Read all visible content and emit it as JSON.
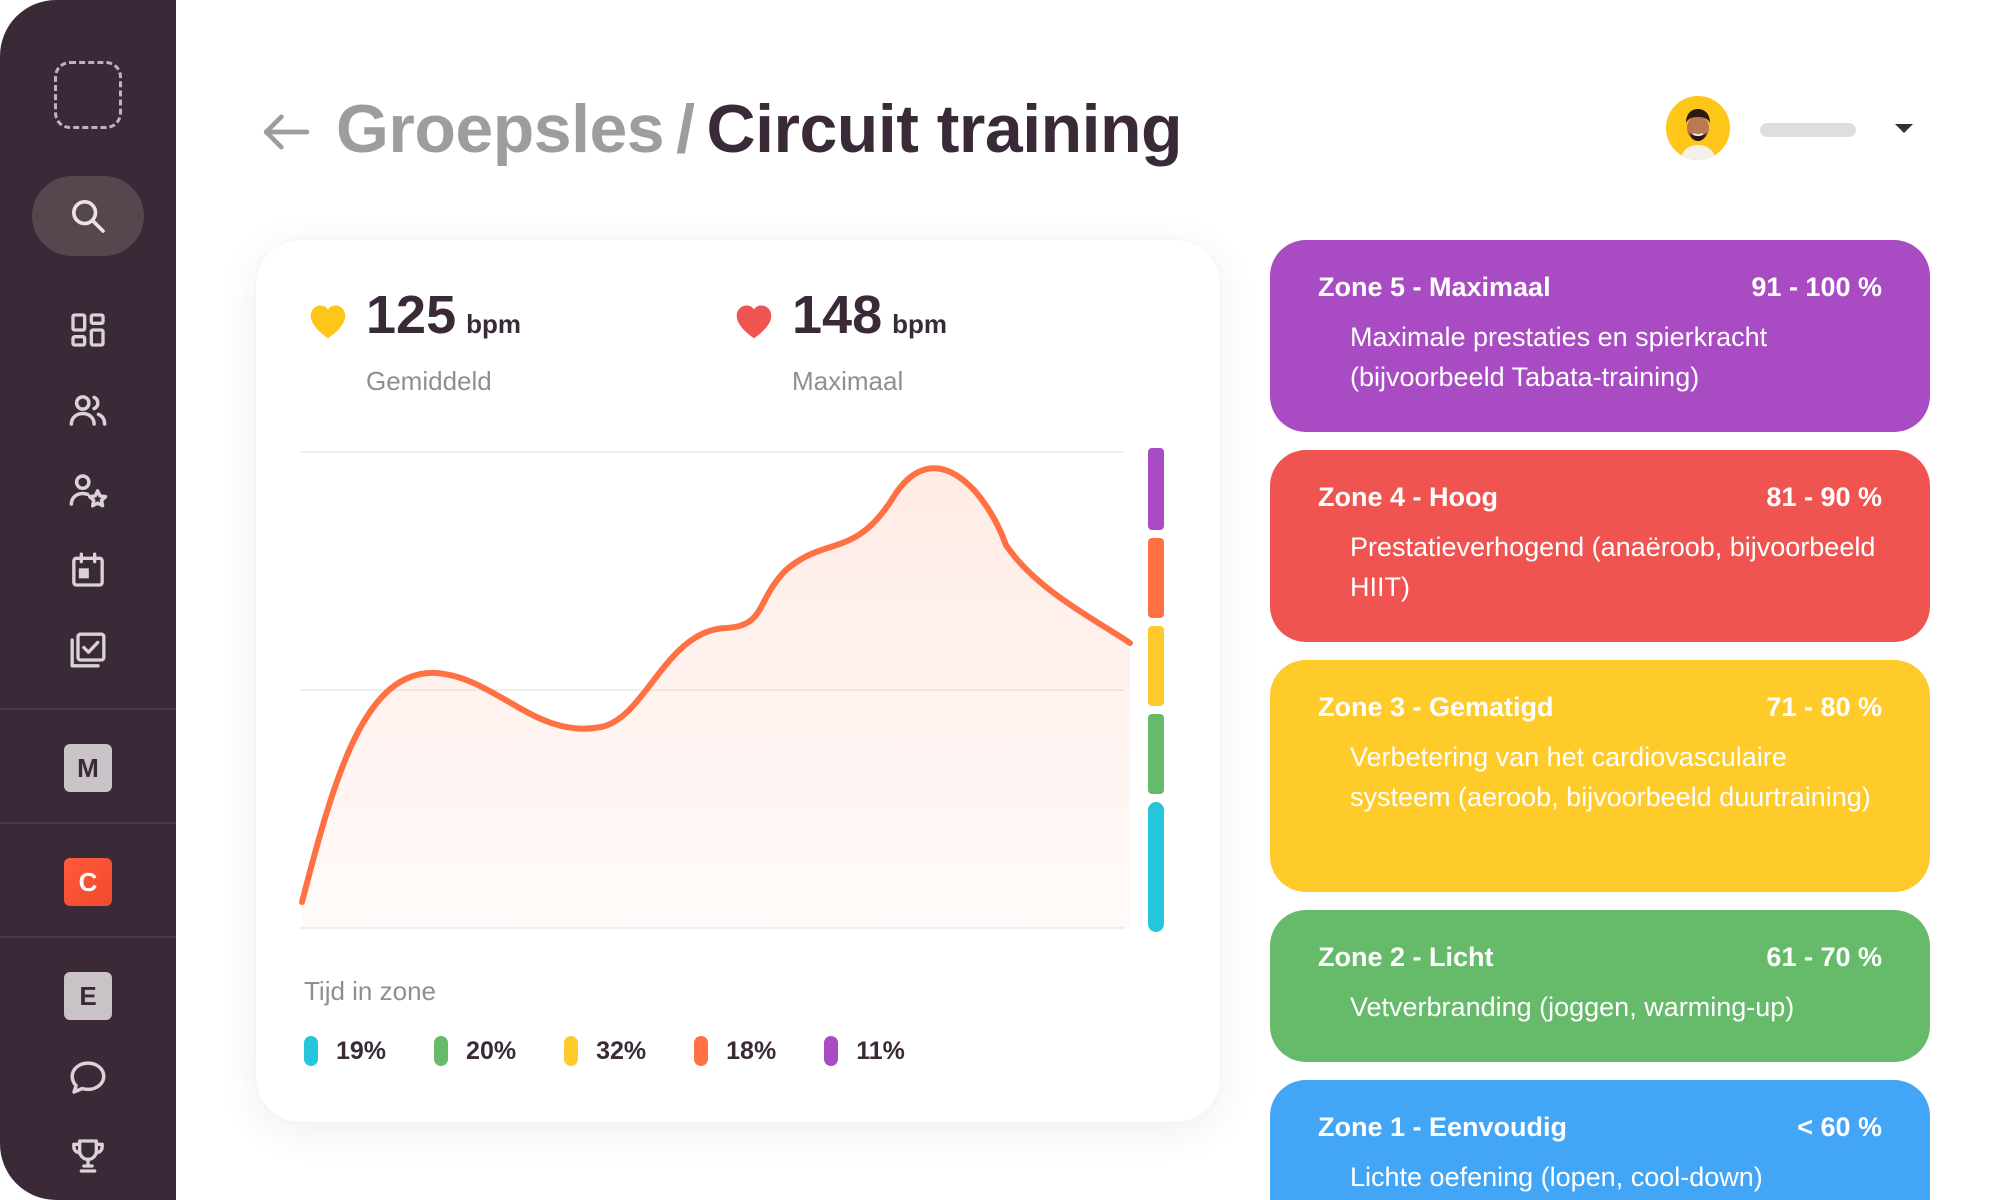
{
  "header": {
    "breadcrumb": "Groepsles",
    "separator": "/",
    "title": "Circuit training"
  },
  "sidebar": {
    "letters": [
      "M",
      "C",
      "E"
    ],
    "bg": "#3a2a37"
  },
  "stats": {
    "average": {
      "value": "125",
      "unit": "bpm",
      "label": "Gemiddeld",
      "color": "#ffc61a"
    },
    "maximum": {
      "value": "148",
      "unit": "bpm",
      "label": "Maximaal",
      "color": "#ef5451"
    }
  },
  "time_in_zone": {
    "label": "Tijd in zone",
    "items": [
      {
        "value": "19%",
        "color": "#26c6da"
      },
      {
        "value": "20%",
        "color": "#66bb6a"
      },
      {
        "value": "32%",
        "color": "#ffcb2b"
      },
      {
        "value": "18%",
        "color": "#ff7043"
      },
      {
        "value": "11%",
        "color": "#a94bc3"
      }
    ]
  },
  "zones": [
    {
      "name": "Zone 5 - Maximaal",
      "range": "91 - 100 %",
      "description": "Maximale prestaties en spierkracht (bijvoorbeeld Tabata-training)",
      "color": "#a94bc3"
    },
    {
      "name": "Zone 4 - Hoog",
      "range": "81 - 90 %",
      "description": "Prestatieverhogend (anaëroob, bijvoorbeeld HIIT)",
      "color": "#ef5451"
    },
    {
      "name": "Zone 3 - Gematigd",
      "range": "71 - 80 %",
      "description": "Verbetering van het cardiovasculaire systeem (aeroob, bijvoorbeeld duurtraining)",
      "color": "#ffcb2b"
    },
    {
      "name": "Zone 2 - Licht",
      "range": "61 - 70 %",
      "description": "Vetverbranding (joggen, warming-up)",
      "color": "#66bb6a"
    },
    {
      "name": "Zone 1 - Eenvoudig",
      "range": "< 60 %",
      "description": "Lichte oefening (lopen, cool-down)",
      "color": "#42a5f5"
    }
  ]
}
